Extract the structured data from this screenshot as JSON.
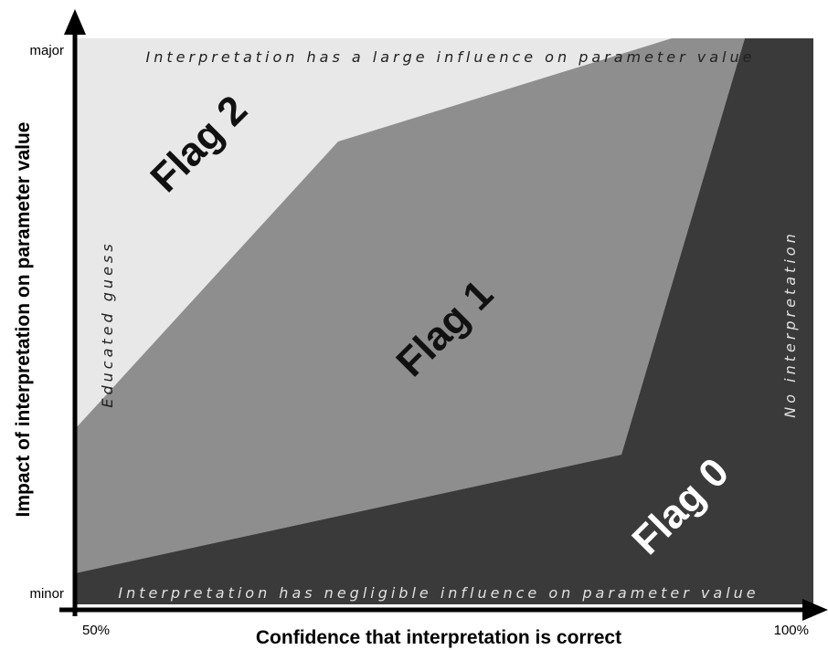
{
  "axes": {
    "x_title": "Confidence that interpretation is correct",
    "y_title": "Impact of interpretation on parameter value",
    "x_min_label": "50%",
    "x_max_label": "100%",
    "y_min_label": "minor",
    "y_max_label": "major"
  },
  "annotations": {
    "top": "Interpretation has a large influence on parameter value",
    "bottom": "Interpretation has negligible influence on parameter value",
    "left": "Educated guess",
    "right": "No interpretation"
  },
  "regions": [
    {
      "label": "Flag 2"
    },
    {
      "label": "Flag 1"
    },
    {
      "label": "Flag 0"
    }
  ]
}
